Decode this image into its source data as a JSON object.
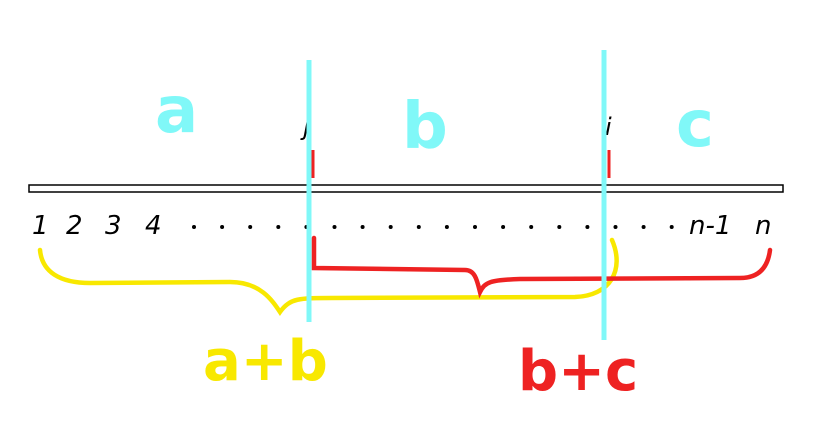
{
  "colors": {
    "cyan": "#80f8f8",
    "red": "#ee2222",
    "yellow": "#f8e800",
    "black": "#000000"
  },
  "segments": {
    "left": "a",
    "middle": "b",
    "right": "c"
  },
  "markers": {
    "left": "j",
    "right": "i"
  },
  "axis_labels": {
    "first": "1",
    "second": "2",
    "third": "3",
    "fourth": "4",
    "second_last": "n-1",
    "last": "n"
  },
  "ellipsis_dot": "·",
  "sums": {
    "yellow": "a+b",
    "red": "b+c"
  }
}
